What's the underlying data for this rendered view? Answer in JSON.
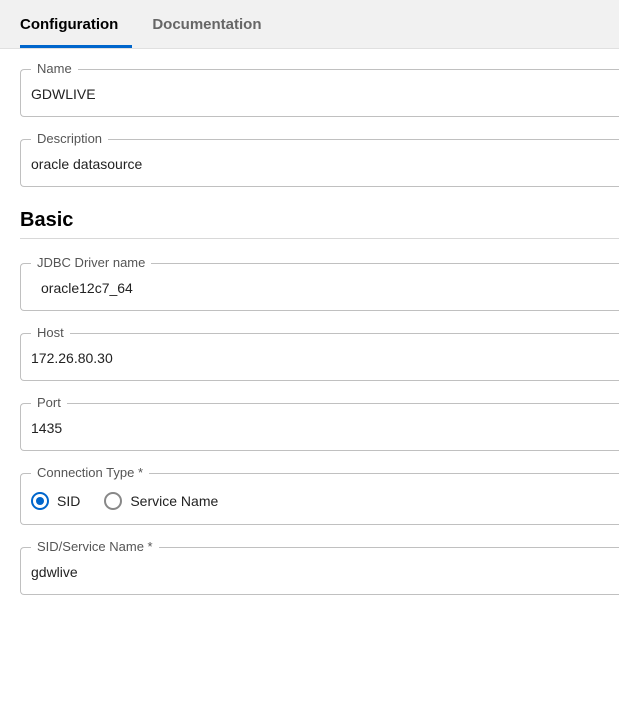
{
  "tabs": {
    "configuration": "Configuration",
    "documentation": "Documentation"
  },
  "fields": {
    "name": {
      "label": "Name",
      "value": "GDWLIVE"
    },
    "description": {
      "label": "Description",
      "value": "oracle datasource"
    },
    "jdbc_driver": {
      "label": "JDBC Driver name",
      "value": "oracle12c7_64"
    },
    "host": {
      "label": "Host",
      "value": "172.26.80.30"
    },
    "port": {
      "label": "Port",
      "value": "1435"
    },
    "connection_type": {
      "label": "Connection Type *",
      "options": {
        "sid": "SID",
        "service_name": "Service Name"
      },
      "selected": "sid"
    },
    "sid_service": {
      "label": "SID/Service Name *",
      "value": "gdwlive"
    }
  },
  "sections": {
    "basic": "Basic"
  }
}
